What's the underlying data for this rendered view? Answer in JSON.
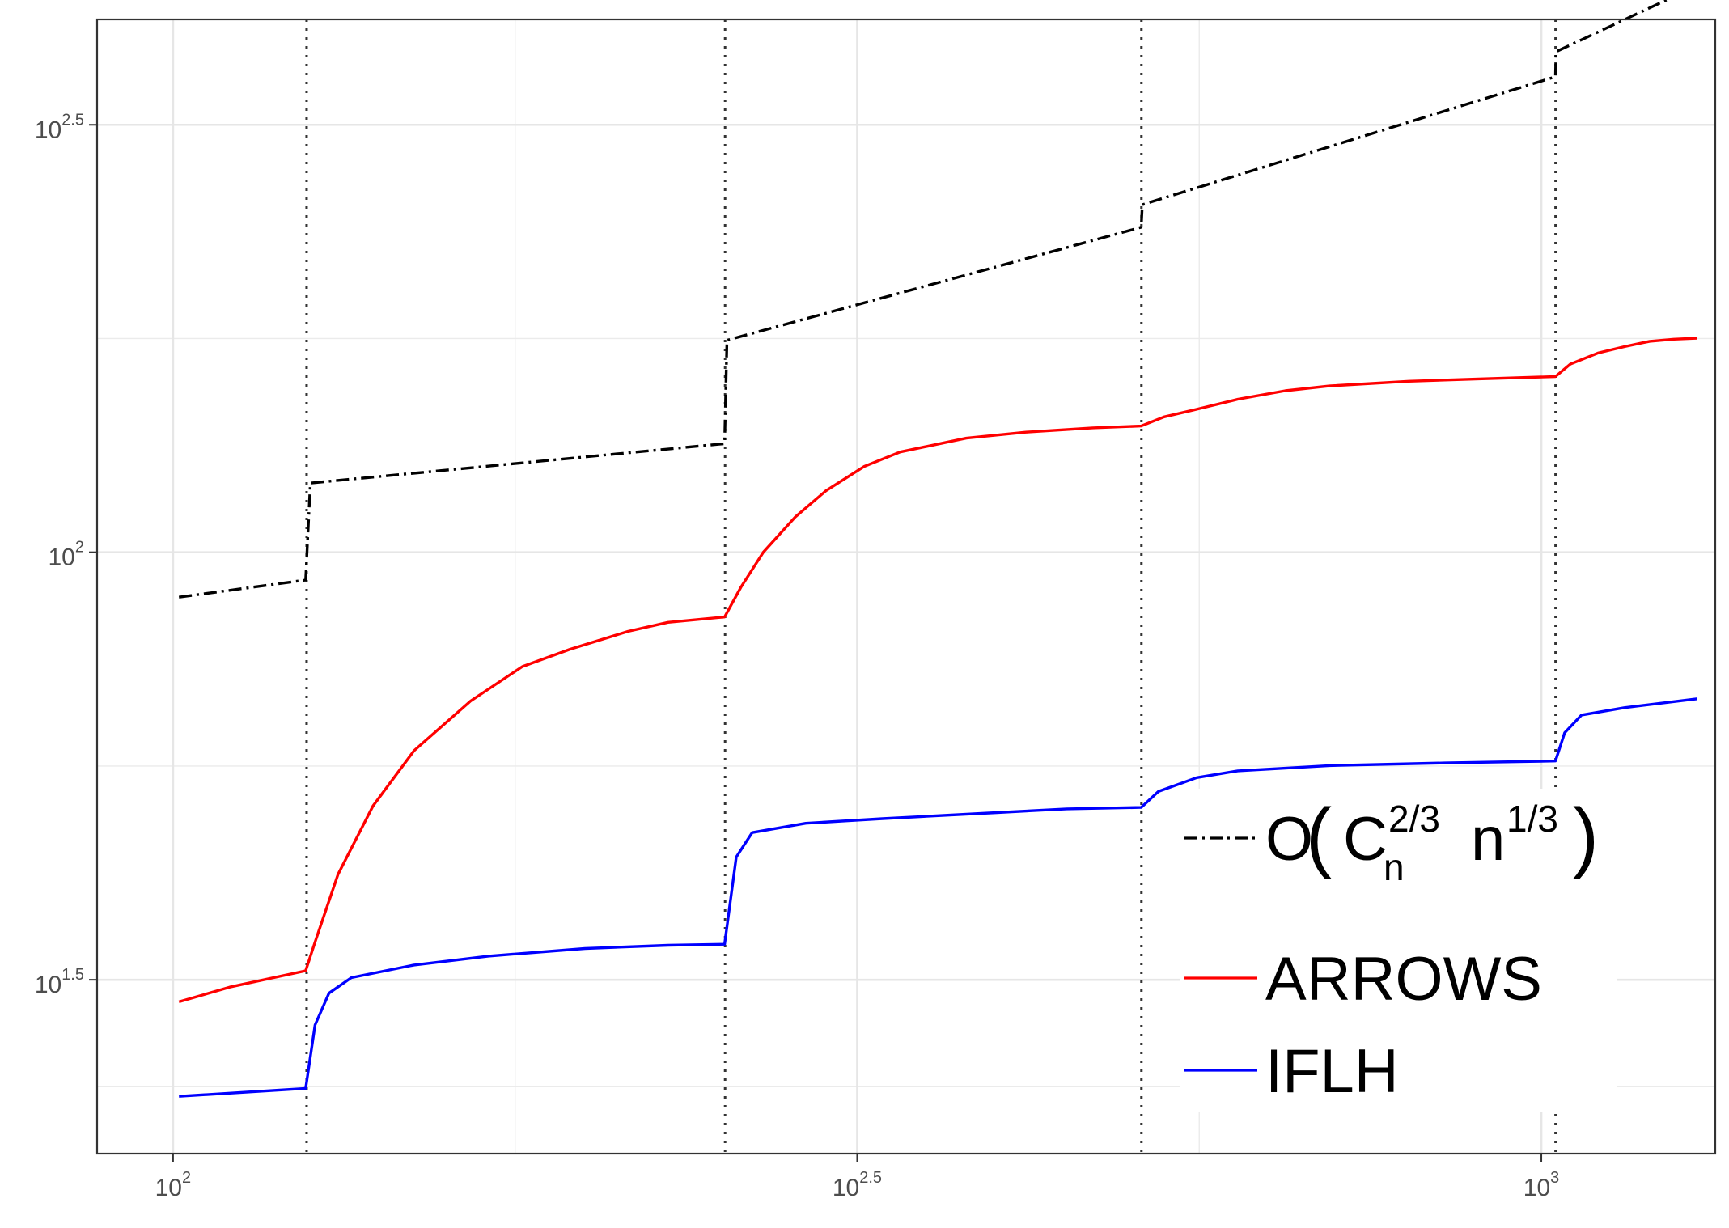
{
  "chart_data": {
    "type": "line",
    "title": "",
    "xlabel": "",
    "ylabel": "",
    "x_scale": "log10",
    "y_scale": "log10",
    "xlim": [
      88,
      1340
    ],
    "ylim": [
      19.8,
      420
    ],
    "grid": true,
    "legend_position": "bottom-right",
    "x_ticks": [
      {
        "value": 100,
        "base": "10",
        "exp": "2"
      },
      {
        "value": 316.23,
        "base": "10",
        "exp": "2.5"
      },
      {
        "value": 1000,
        "base": "10",
        "exp": "3"
      }
    ],
    "y_ticks": [
      {
        "value": 31.62,
        "base": "10",
        "exp": "1.5"
      },
      {
        "value": 100,
        "base": "10",
        "exp": "2"
      },
      {
        "value": 316.23,
        "base": "10",
        "exp": "2.5"
      }
    ],
    "x_minor_grid": [
      177.83,
      562.34
    ],
    "y_minor_grid": [
      23.71,
      56.23,
      177.83
    ],
    "vlines": [
      125.2,
      253.2,
      510.2,
      1024.2
    ],
    "series": [
      {
        "name": "O(C_n^{2/3} n^{1/3})",
        "color": "#000000",
        "dash": "dashdot",
        "points": [
          [
            101,
            88.6
          ],
          [
            125,
            92.8
          ],
          [
            126,
            120.5
          ],
          [
            253,
            134
          ],
          [
            254,
            177
          ],
          [
            510,
            240
          ],
          [
            511,
            255
          ],
          [
            1024,
            360
          ],
          [
            1025,
            385
          ],
          [
            1300,
            460
          ]
        ]
      },
      {
        "name": "ARROWS",
        "color": "#ff0000",
        "dash": "solid",
        "points": [
          [
            101,
            29.8
          ],
          [
            110,
            31
          ],
          [
            125,
            32.4
          ],
          [
            127,
            35
          ],
          [
            132,
            42
          ],
          [
            140,
            50.5
          ],
          [
            150,
            58.6
          ],
          [
            165,
            67
          ],
          [
            180,
            73.5
          ],
          [
            195,
            77
          ],
          [
            215,
            80.8
          ],
          [
            230,
            82.8
          ],
          [
            253,
            84
          ],
          [
            260,
            91
          ],
          [
            270,
            100
          ],
          [
            285,
            110
          ],
          [
            300,
            118
          ],
          [
            320,
            126
          ],
          [
            340,
            131
          ],
          [
            380,
            136
          ],
          [
            420,
            138.2
          ],
          [
            470,
            139.8
          ],
          [
            510,
            140.5
          ],
          [
            530,
            144
          ],
          [
            560,
            147
          ],
          [
            600,
            151
          ],
          [
            650,
            154.5
          ],
          [
            700,
            156.5
          ],
          [
            800,
            158.5
          ],
          [
            900,
            159.5
          ],
          [
            1024,
            160.5
          ],
          [
            1050,
            166
          ],
          [
            1100,
            171
          ],
          [
            1150,
            174
          ],
          [
            1200,
            176.5
          ],
          [
            1250,
            177.5
          ],
          [
            1300,
            178
          ]
        ]
      },
      {
        "name": "IFLH",
        "color": "#0000ff",
        "dash": "solid",
        "points": [
          [
            101,
            23.1
          ],
          [
            110,
            23.3
          ],
          [
            125,
            23.6
          ],
          [
            127,
            28
          ],
          [
            130,
            30.5
          ],
          [
            135,
            31.8
          ],
          [
            150,
            32.9
          ],
          [
            170,
            33.7
          ],
          [
            200,
            34.4
          ],
          [
            230,
            34.7
          ],
          [
            253,
            34.8
          ],
          [
            258,
            44
          ],
          [
            265,
            47
          ],
          [
            290,
            48.2
          ],
          [
            330,
            48.8
          ],
          [
            400,
            49.6
          ],
          [
            450,
            50.1
          ],
          [
            510,
            50.3
          ],
          [
            525,
            52.5
          ],
          [
            560,
            54.5
          ],
          [
            600,
            55.5
          ],
          [
            700,
            56.3
          ],
          [
            850,
            56.7
          ],
          [
            1024,
            57
          ],
          [
            1040,
            61.5
          ],
          [
            1070,
            64.5
          ],
          [
            1150,
            65.8
          ],
          [
            1300,
            67.4
          ]
        ]
      }
    ]
  },
  "legend": {
    "o_label": {
      "main": "O",
      "c": "C",
      "c_sup": "2/3",
      "c_sub": "n",
      "n": "n",
      "n_sup": "1/3"
    },
    "arrows_label": "ARROWS",
    "iflh_label": "IFLH"
  }
}
